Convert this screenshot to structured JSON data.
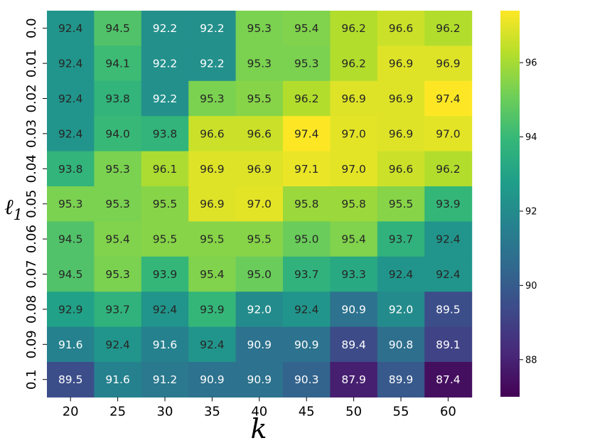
{
  "chart_data": {
    "type": "heatmap",
    "title": "",
    "xlabel": "k",
    "ylabel": "ℓ1",
    "x_categories": [
      "20",
      "25",
      "30",
      "35",
      "40",
      "45",
      "50",
      "55",
      "60"
    ],
    "y_categories": [
      "0.0",
      "0.01",
      "0.02",
      "0.03",
      "0.04",
      "0.05",
      "0.06",
      "0.07",
      "0.08",
      "0.09",
      "0.1"
    ],
    "values": [
      [
        92.4,
        94.5,
        92.2,
        92.2,
        95.3,
        95.4,
        96.2,
        96.6,
        96.2
      ],
      [
        92.4,
        94.1,
        92.2,
        92.2,
        95.3,
        95.3,
        96.2,
        96.9,
        96.9
      ],
      [
        92.4,
        93.8,
        92.2,
        95.3,
        95.5,
        96.2,
        96.9,
        96.9,
        97.4
      ],
      [
        92.4,
        94.0,
        93.8,
        96.6,
        96.6,
        97.4,
        97.0,
        96.9,
        97.0
      ],
      [
        93.8,
        95.3,
        96.1,
        96.9,
        96.9,
        97.1,
        97.0,
        96.6,
        96.2
      ],
      [
        95.3,
        95.3,
        95.5,
        96.9,
        97.0,
        95.8,
        95.8,
        95.5,
        93.9
      ],
      [
        94.5,
        95.4,
        95.5,
        95.5,
        95.5,
        95.0,
        95.4,
        93.7,
        92.4
      ],
      [
        94.5,
        95.3,
        93.9,
        95.4,
        95.0,
        93.7,
        93.3,
        92.4,
        92.4
      ],
      [
        92.9,
        93.7,
        92.4,
        93.9,
        92.0,
        92.4,
        90.9,
        92.0,
        89.5
      ],
      [
        91.6,
        92.4,
        91.6,
        92.4,
        90.9,
        90.9,
        89.4,
        90.8,
        89.1
      ],
      [
        89.5,
        91.6,
        91.2,
        90.9,
        90.9,
        90.3,
        87.9,
        89.9,
        87.4
      ]
    ],
    "colormap": "viridis",
    "vmin": 87.0,
    "vmax": 97.4,
    "colorbar_ticks": [
      "88",
      "90",
      "92",
      "94",
      "96"
    ],
    "annotated": true,
    "grid": false,
    "legend": "colorbar-right"
  }
}
